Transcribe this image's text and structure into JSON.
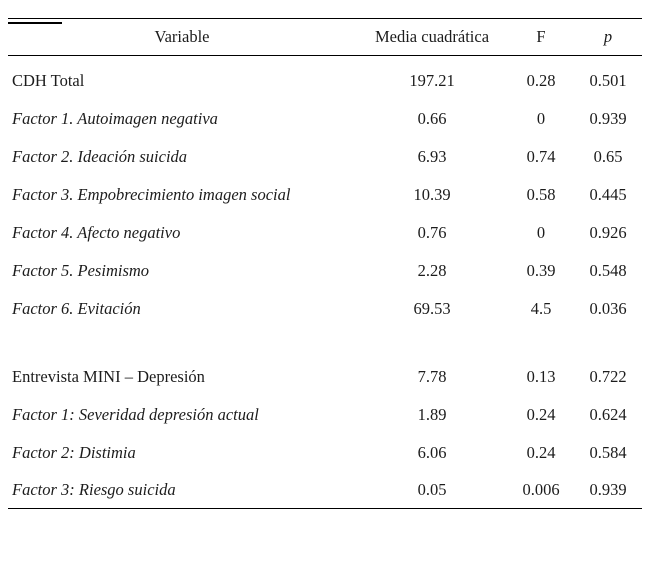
{
  "table": {
    "columns": [
      "Variable",
      "Media cuadrática",
      "F",
      "p"
    ],
    "rows": [
      {
        "variable": "CDH Total",
        "italic": false,
        "mean_square": "197.21",
        "f": "0.28",
        "p": "0.501"
      },
      {
        "variable": "Factor 1. Autoimagen negativa",
        "italic": true,
        "mean_square": "0.66",
        "f": "0",
        "p": "0.939"
      },
      {
        "variable": "Factor 2. Ideación suicida",
        "italic": true,
        "mean_square": "6.93",
        "f": "0.74",
        "p": "0.65"
      },
      {
        "variable": "Factor 3. Empobrecimiento imagen social",
        "italic": true,
        "mean_square": "10.39",
        "f": "0.58",
        "p": "0.445"
      },
      {
        "variable": "Factor 4. Afecto negativo",
        "italic": true,
        "mean_square": "0.76",
        "f": "0",
        "p": "0.926"
      },
      {
        "variable": "Factor 5. Pesimismo",
        "italic": true,
        "mean_square": "2.28",
        "f": "0.39",
        "p": "0.548"
      },
      {
        "variable": "Factor 6. Evitación",
        "italic": true,
        "mean_square": "69.53",
        "f": "4.5",
        "p": "0.036"
      },
      {
        "spacer": true
      },
      {
        "variable": "Entrevista MINI – Depresión",
        "italic": false,
        "mean_square": "7.78",
        "f": "0.13",
        "p": "0.722"
      },
      {
        "variable": "Factor 1: Severidad depresión actual",
        "italic": true,
        "mean_square": "1.89",
        "f": "0.24",
        "p": "0.624"
      },
      {
        "variable": "Factor 2: Distimia",
        "italic": true,
        "mean_square": "6.06",
        "f": "0.24",
        "p": "0.584"
      },
      {
        "variable": "Factor 3: Riesgo suicida",
        "italic": true,
        "mean_square": "0.05",
        "f": "0.006",
        "p": "0.939"
      }
    ]
  }
}
